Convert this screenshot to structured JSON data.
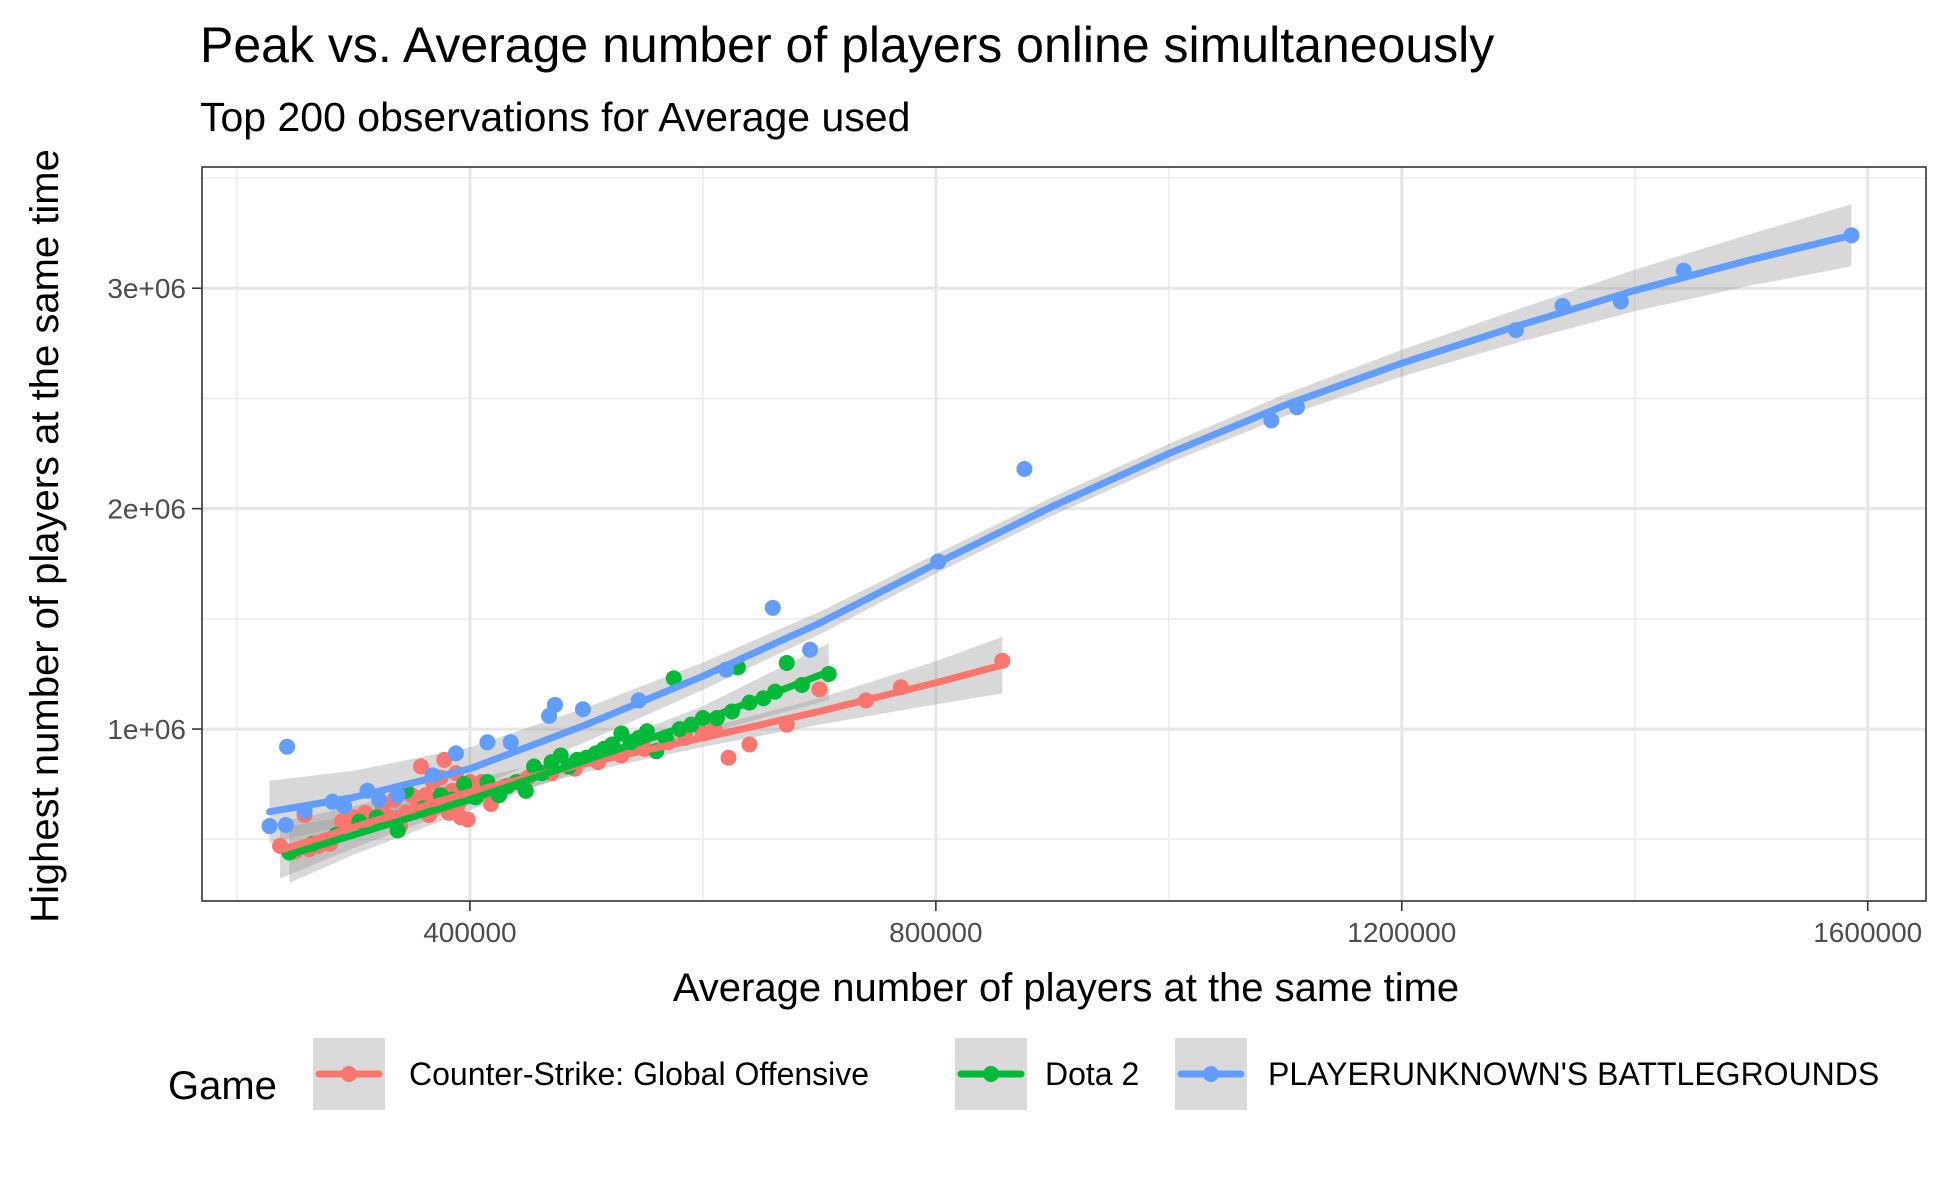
{
  "chart_data": {
    "type": "scatter",
    "title": "Peak vs. Average number of players online simultaneously",
    "subtitle": "Top 200 observations for Average used",
    "xlabel": "Average number of players at the same time",
    "ylabel": "Highest number of players at the same time",
    "xlim": [
      170000,
      1650000
    ],
    "ylim": [
      220000,
      3550000
    ],
    "x_ticks": [
      400000,
      800000,
      1200000,
      1600000
    ],
    "x_tick_labels": [
      "400000",
      "800000",
      "1200000",
      "1600000"
    ],
    "y_ticks": [
      1000000,
      2000000,
      3000000
    ],
    "y_tick_labels": [
      "1e+06",
      "2e+06",
      "3e+06"
    ],
    "grid": true,
    "legend": {
      "title": "Game",
      "position": "bottom"
    },
    "series": [
      {
        "name": "Counter-Strike: Global Offensive",
        "color": "#F8766D",
        "points": [
          [
            237000,
            470000
          ],
          [
            250000,
            445000
          ],
          [
            258000,
            610000
          ],
          [
            262000,
            455000
          ],
          [
            270000,
            470000
          ],
          [
            280000,
            480000
          ],
          [
            290000,
            580000
          ],
          [
            300000,
            600000
          ],
          [
            310000,
            620000
          ],
          [
            320000,
            590000
          ],
          [
            325000,
            650000
          ],
          [
            330000,
            600000
          ],
          [
            335000,
            680000
          ],
          [
            340000,
            560000
          ],
          [
            345000,
            620000
          ],
          [
            350000,
            700000
          ],
          [
            355000,
            640000
          ],
          [
            358000,
            830000
          ],
          [
            362000,
            700000
          ],
          [
            365000,
            610000
          ],
          [
            368000,
            760000
          ],
          [
            372000,
            650000
          ],
          [
            375000,
            780000
          ],
          [
            378000,
            860000
          ],
          [
            380000,
            700000
          ],
          [
            382000,
            620000
          ],
          [
            385000,
            720000
          ],
          [
            388000,
            800000
          ],
          [
            390000,
            660000
          ],
          [
            392000,
            600000
          ],
          [
            395000,
            740000
          ],
          [
            398000,
            590000
          ],
          [
            400000,
            760000
          ],
          [
            405000,
            700000
          ],
          [
            410000,
            760000
          ],
          [
            418000,
            660000
          ],
          [
            430000,
            740000
          ],
          [
            450000,
            780000
          ],
          [
            470000,
            800000
          ],
          [
            490000,
            820000
          ],
          [
            510000,
            850000
          ],
          [
            530000,
            880000
          ],
          [
            550000,
            910000
          ],
          [
            570000,
            940000
          ],
          [
            585000,
            960000
          ],
          [
            600000,
            980000
          ],
          [
            610000,
            1000000
          ],
          [
            622000,
            870000
          ],
          [
            640000,
            930000
          ],
          [
            672000,
            1020000
          ],
          [
            700000,
            1180000
          ],
          [
            740000,
            1130000
          ],
          [
            770000,
            1190000
          ],
          [
            857000,
            1310000
          ]
        ],
        "fit": [
          [
            237000,
            450000
          ],
          [
            300000,
            555000
          ],
          [
            400000,
            715000
          ],
          [
            500000,
            845000
          ],
          [
            600000,
            960000
          ],
          [
            700000,
            1080000
          ],
          [
            800000,
            1210000
          ],
          [
            857000,
            1290000
          ]
        ]
      },
      {
        "name": "Dota 2",
        "color": "#00BA38",
        "points": [
          [
            245000,
            440000
          ],
          [
            265000,
            480000
          ],
          [
            285000,
            520000
          ],
          [
            305000,
            580000
          ],
          [
            320000,
            600000
          ],
          [
            338000,
            540000
          ],
          [
            345000,
            720000
          ],
          [
            360000,
            640000
          ],
          [
            375000,
            700000
          ],
          [
            385000,
            680000
          ],
          [
            395000,
            750000
          ],
          [
            405000,
            690000
          ],
          [
            415000,
            760000
          ],
          [
            425000,
            700000
          ],
          [
            432000,
            740000
          ],
          [
            440000,
            760000
          ],
          [
            448000,
            720000
          ],
          [
            455000,
            830000
          ],
          [
            462000,
            800000
          ],
          [
            470000,
            850000
          ],
          [
            478000,
            880000
          ],
          [
            485000,
            830000
          ],
          [
            492000,
            860000
          ],
          [
            500000,
            870000
          ],
          [
            508000,
            890000
          ],
          [
            515000,
            910000
          ],
          [
            522000,
            930000
          ],
          [
            530000,
            980000
          ],
          [
            538000,
            940000
          ],
          [
            545000,
            960000
          ],
          [
            552000,
            990000
          ],
          [
            560000,
            900000
          ],
          [
            568000,
            960000
          ],
          [
            575000,
            1230000
          ],
          [
            580000,
            1000000
          ],
          [
            590000,
            1020000
          ],
          [
            600000,
            1050000
          ],
          [
            612000,
            1050000
          ],
          [
            625000,
            1080000
          ],
          [
            630000,
            1280000
          ],
          [
            640000,
            1120000
          ],
          [
            652000,
            1140000
          ],
          [
            662000,
            1170000
          ],
          [
            672000,
            1300000
          ],
          [
            685000,
            1200000
          ],
          [
            708000,
            1250000
          ]
        ],
        "fit": [
          [
            245000,
            430000
          ],
          [
            300000,
            520000
          ],
          [
            400000,
            680000
          ],
          [
            500000,
            860000
          ],
          [
            600000,
            1040000
          ],
          [
            708000,
            1260000
          ]
        ]
      },
      {
        "name": "PLAYERUNKNOWN'S BATTLEGROUNDS",
        "color": "#619CFF",
        "points": [
          [
            228000,
            560000
          ],
          [
            242000,
            565000
          ],
          [
            243000,
            920000
          ],
          [
            258000,
            630000
          ],
          [
            282000,
            670000
          ],
          [
            292000,
            650000
          ],
          [
            312000,
            720000
          ],
          [
            322000,
            680000
          ],
          [
            338000,
            700000
          ],
          [
            368000,
            790000
          ],
          [
            388000,
            890000
          ],
          [
            415000,
            940000
          ],
          [
            435000,
            940000
          ],
          [
            468000,
            1060000
          ],
          [
            473000,
            1110000
          ],
          [
            497000,
            1090000
          ],
          [
            545000,
            1130000
          ],
          [
            620000,
            1270000
          ],
          [
            660000,
            1550000
          ],
          [
            692000,
            1360000
          ],
          [
            802000,
            1760000
          ],
          [
            876000,
            2180000
          ],
          [
            1088000,
            2400000
          ],
          [
            1110000,
            2460000
          ],
          [
            1298000,
            2810000
          ],
          [
            1338000,
            2920000
          ],
          [
            1388000,
            2940000
          ],
          [
            1442000,
            3080000
          ],
          [
            1586000,
            3240000
          ]
        ],
        "fit": [
          [
            228000,
            625000
          ],
          [
            300000,
            690000
          ],
          [
            400000,
            820000
          ],
          [
            500000,
            1020000
          ],
          [
            600000,
            1240000
          ],
          [
            700000,
            1480000
          ],
          [
            800000,
            1750000
          ],
          [
            900000,
            2010000
          ],
          [
            1000000,
            2250000
          ],
          [
            1100000,
            2470000
          ],
          [
            1200000,
            2660000
          ],
          [
            1300000,
            2830000
          ],
          [
            1400000,
            2990000
          ],
          [
            1500000,
            3130000
          ],
          [
            1586000,
            3240000
          ]
        ]
      }
    ]
  }
}
